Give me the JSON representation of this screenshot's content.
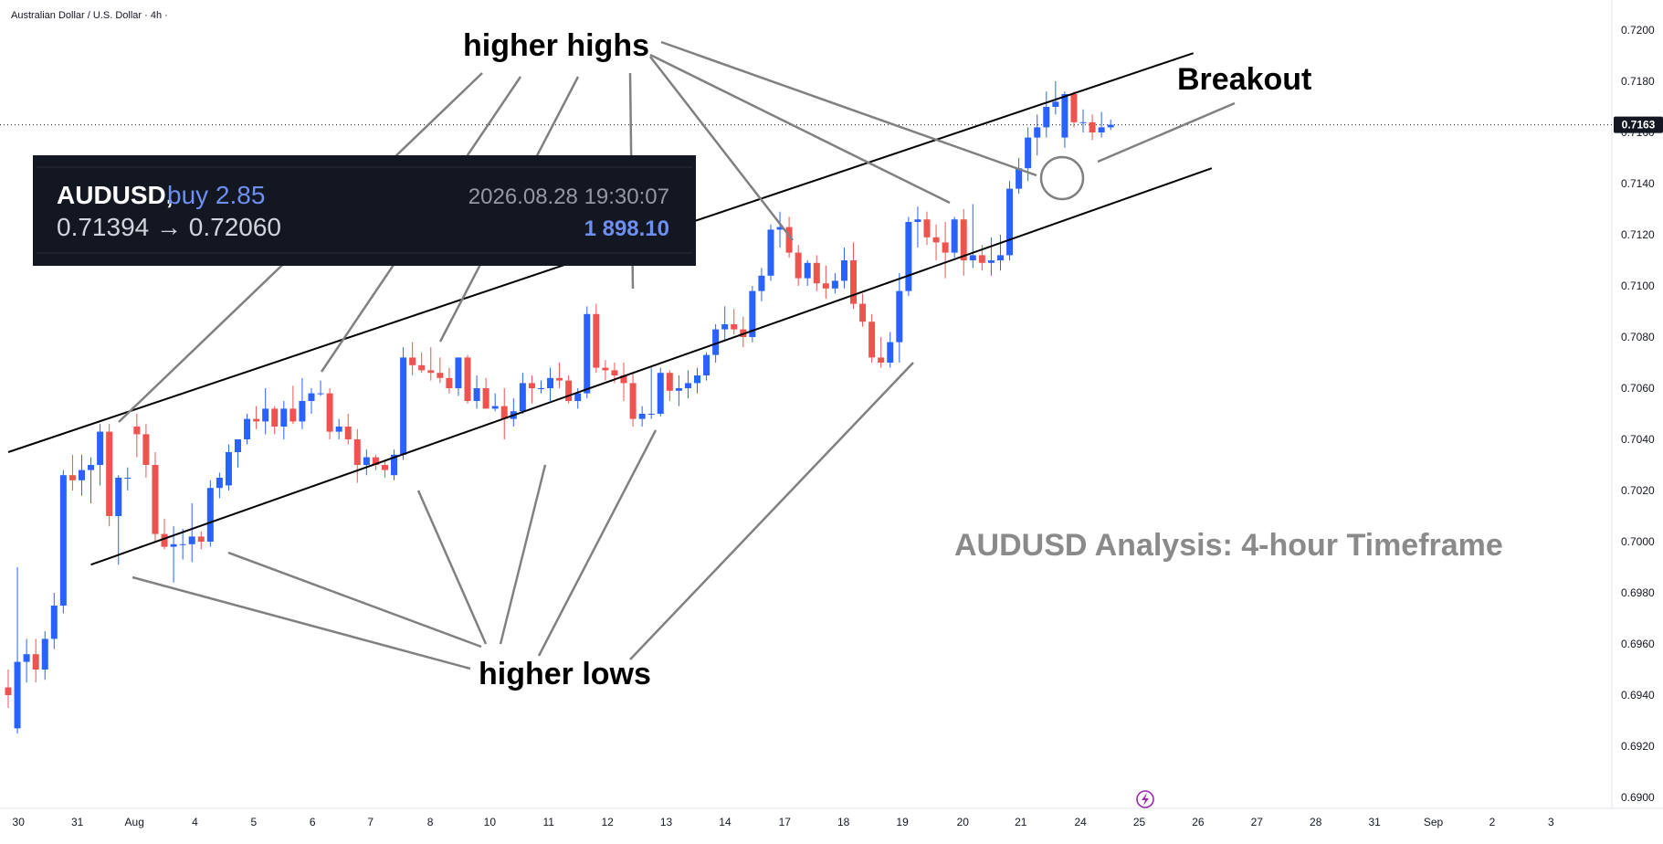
{
  "header": {
    "symbol_label": "Australian Dollar / U.S. Dollar · 4h ·"
  },
  "annotations": {
    "higher_highs": "higher highs",
    "higher_lows": "higher lows",
    "breakout": "Breakout",
    "title": "AUDUSD Analysis: 4-hour Timeframe"
  },
  "info_box": {
    "symbol": "AUDUSD,",
    "side": "buy 2.85",
    "prices": "0.71394 → 0.72060",
    "datetime": "2026.08.28 19:30:07",
    "value": "1 898.10"
  },
  "price_axis": {
    "ticks": [
      "0.7200",
      "0.7180",
      "0.7160",
      "0.7140",
      "0.7120",
      "0.7100",
      "0.7080",
      "0.7060",
      "0.7040",
      "0.7020",
      "0.7000",
      "0.6980",
      "0.6960",
      "0.6940",
      "0.6920",
      "0.6900"
    ],
    "last_price": "0.7163"
  },
  "time_axis": {
    "ticks": [
      "30",
      "31",
      "Aug",
      "4",
      "5",
      "6",
      "7",
      "8",
      "10",
      "11",
      "12",
      "13",
      "14",
      "17",
      "18",
      "19",
      "20",
      "21",
      "24",
      "25",
      "26",
      "27",
      "28",
      "31",
      "Sep",
      "2",
      "3"
    ]
  },
  "colors": {
    "up": "#2962ff",
    "down": "#ef5350",
    "line": "#000000",
    "annotation_line": "#808080"
  },
  "chart_data": {
    "type": "candlestick",
    "symbol": "AUDUSD",
    "timeframe": "4h",
    "ylim": [
      0.69,
      0.72
    ],
    "grid": false,
    "candles": [
      {
        "o": 0.6943,
        "h": 0.695,
        "l": 0.6935,
        "c": 0.694
      },
      {
        "o": 0.6927,
        "h": 0.699,
        "l": 0.6925,
        "c": 0.6953
      },
      {
        "o": 0.6953,
        "h": 0.6962,
        "l": 0.6945,
        "c": 0.6956
      },
      {
        "o": 0.6956,
        "h": 0.6962,
        "l": 0.6945,
        "c": 0.695
      },
      {
        "o": 0.695,
        "h": 0.6965,
        "l": 0.6946,
        "c": 0.6962
      },
      {
        "o": 0.6962,
        "h": 0.698,
        "l": 0.6958,
        "c": 0.6975
      },
      {
        "o": 0.6975,
        "h": 0.7028,
        "l": 0.6972,
        "c": 0.7026
      },
      {
        "o": 0.7026,
        "h": 0.7034,
        "l": 0.702,
        "c": 0.7024
      },
      {
        "o": 0.7024,
        "h": 0.7034,
        "l": 0.7018,
        "c": 0.7028
      },
      {
        "o": 0.7028,
        "h": 0.7033,
        "l": 0.7015,
        "c": 0.703
      },
      {
        "o": 0.703,
        "h": 0.7046,
        "l": 0.7022,
        "c": 0.7043
      },
      {
        "o": 0.7043,
        "h": 0.7046,
        "l": 0.7006,
        "c": 0.701
      },
      {
        "o": 0.701,
        "h": 0.7026,
        "l": 0.6991,
        "c": 0.7025
      },
      {
        "o": 0.7025,
        "h": 0.7029,
        "l": 0.702,
        "c": 0.7025
      },
      {
        "o": 0.7045,
        "h": 0.705,
        "l": 0.7033,
        "c": 0.7042
      },
      {
        "o": 0.7042,
        "h": 0.7046,
        "l": 0.7025,
        "c": 0.703
      },
      {
        "o": 0.703,
        "h": 0.7035,
        "l": 0.7,
        "c": 0.7003
      },
      {
        "o": 0.7003,
        "h": 0.7009,
        "l": 0.6997,
        "c": 0.6998
      },
      {
        "o": 0.6998,
        "h": 0.7006,
        "l": 0.6984,
        "c": 0.6999
      },
      {
        "o": 0.6999,
        "h": 0.7005,
        "l": 0.6993,
        "c": 0.6999
      },
      {
        "o": 0.6999,
        "h": 0.7015,
        "l": 0.6992,
        "c": 0.7002
      },
      {
        "o": 0.7002,
        "h": 0.7004,
        "l": 0.6997,
        "c": 0.7
      },
      {
        "o": 0.7,
        "h": 0.7024,
        "l": 0.6998,
        "c": 0.7021
      },
      {
        "o": 0.7021,
        "h": 0.7027,
        "l": 0.7017,
        "c": 0.7025
      },
      {
        "o": 0.7022,
        "h": 0.7038,
        "l": 0.702,
        "c": 0.7035
      },
      {
        "o": 0.7035,
        "h": 0.704,
        "l": 0.7029,
        "c": 0.704
      },
      {
        "o": 0.704,
        "h": 0.705,
        "l": 0.7038,
        "c": 0.7048
      },
      {
        "o": 0.7048,
        "h": 0.7053,
        "l": 0.7044,
        "c": 0.7047
      },
      {
        "o": 0.7047,
        "h": 0.706,
        "l": 0.7042,
        "c": 0.7052
      },
      {
        "o": 0.7052,
        "h": 0.7053,
        "l": 0.7042,
        "c": 0.7045
      },
      {
        "o": 0.7045,
        "h": 0.7055,
        "l": 0.704,
        "c": 0.7052
      },
      {
        "o": 0.7052,
        "h": 0.7061,
        "l": 0.7046,
        "c": 0.7047
      },
      {
        "o": 0.7047,
        "h": 0.7064,
        "l": 0.7044,
        "c": 0.7055
      },
      {
        "o": 0.7055,
        "h": 0.706,
        "l": 0.705,
        "c": 0.7058
      },
      {
        "o": 0.7058,
        "h": 0.7063,
        "l": 0.7057,
        "c": 0.7058
      },
      {
        "o": 0.7058,
        "h": 0.706,
        "l": 0.704,
        "c": 0.7043
      },
      {
        "o": 0.7043,
        "h": 0.7048,
        "l": 0.704,
        "c": 0.7045
      },
      {
        "o": 0.7045,
        "h": 0.705,
        "l": 0.7038,
        "c": 0.704
      },
      {
        "o": 0.704,
        "h": 0.7044,
        "l": 0.7023,
        "c": 0.703
      },
      {
        "o": 0.703,
        "h": 0.7036,
        "l": 0.7026,
        "c": 0.7033
      },
      {
        "o": 0.7033,
        "h": 0.7034,
        "l": 0.7028,
        "c": 0.703
      },
      {
        "o": 0.703,
        "h": 0.7032,
        "l": 0.7025,
        "c": 0.7028
      },
      {
        "o": 0.7026,
        "h": 0.7036,
        "l": 0.7024,
        "c": 0.7034
      },
      {
        "o": 0.7034,
        "h": 0.7076,
        "l": 0.7032,
        "c": 0.7072
      },
      {
        "o": 0.7072,
        "h": 0.7078,
        "l": 0.7065,
        "c": 0.7069
      },
      {
        "o": 0.7069,
        "h": 0.7074,
        "l": 0.7066,
        "c": 0.7067
      },
      {
        "o": 0.7067,
        "h": 0.7076,
        "l": 0.7063,
        "c": 0.7066
      },
      {
        "o": 0.7066,
        "h": 0.7072,
        "l": 0.7062,
        "c": 0.7064
      },
      {
        "o": 0.7064,
        "h": 0.7068,
        "l": 0.7058,
        "c": 0.706
      },
      {
        "o": 0.706,
        "h": 0.7072,
        "l": 0.7057,
        "c": 0.7072
      },
      {
        "o": 0.7072,
        "h": 0.7073,
        "l": 0.7054,
        "c": 0.7055
      },
      {
        "o": 0.7055,
        "h": 0.7065,
        "l": 0.7052,
        "c": 0.706
      },
      {
        "o": 0.706,
        "h": 0.7064,
        "l": 0.7052,
        "c": 0.7052
      },
      {
        "o": 0.7052,
        "h": 0.7058,
        "l": 0.7051,
        "c": 0.7053
      },
      {
        "o": 0.7053,
        "h": 0.706,
        "l": 0.704,
        "c": 0.7048
      },
      {
        "o": 0.7048,
        "h": 0.7056,
        "l": 0.7045,
        "c": 0.7051
      },
      {
        "o": 0.7051,
        "h": 0.7066,
        "l": 0.705,
        "c": 0.7062
      },
      {
        "o": 0.7062,
        "h": 0.7065,
        "l": 0.7054,
        "c": 0.706
      },
      {
        "o": 0.706,
        "h": 0.7063,
        "l": 0.7058,
        "c": 0.706
      },
      {
        "o": 0.706,
        "h": 0.7068,
        "l": 0.7055,
        "c": 0.7064
      },
      {
        "o": 0.7064,
        "h": 0.707,
        "l": 0.706,
        "c": 0.7063
      },
      {
        "o": 0.7063,
        "h": 0.7065,
        "l": 0.7054,
        "c": 0.7055
      },
      {
        "o": 0.7055,
        "h": 0.706,
        "l": 0.7052,
        "c": 0.7058
      },
      {
        "o": 0.7058,
        "h": 0.7092,
        "l": 0.7056,
        "c": 0.7089
      },
      {
        "o": 0.7089,
        "h": 0.7093,
        "l": 0.7066,
        "c": 0.7068
      },
      {
        "o": 0.7068,
        "h": 0.7071,
        "l": 0.7063,
        "c": 0.7067
      },
      {
        "o": 0.7067,
        "h": 0.707,
        "l": 0.7062,
        "c": 0.7065
      },
      {
        "o": 0.7065,
        "h": 0.707,
        "l": 0.7055,
        "c": 0.7062
      },
      {
        "o": 0.7062,
        "h": 0.7066,
        "l": 0.7045,
        "c": 0.7048
      },
      {
        "o": 0.7048,
        "h": 0.7053,
        "l": 0.7045,
        "c": 0.705
      },
      {
        "o": 0.705,
        "h": 0.7068,
        "l": 0.7048,
        "c": 0.705
      },
      {
        "o": 0.705,
        "h": 0.7068,
        "l": 0.7049,
        "c": 0.7066
      },
      {
        "o": 0.7066,
        "h": 0.7067,
        "l": 0.7055,
        "c": 0.7059
      },
      {
        "o": 0.7059,
        "h": 0.7065,
        "l": 0.7053,
        "c": 0.706
      },
      {
        "o": 0.706,
        "h": 0.7067,
        "l": 0.7056,
        "c": 0.7062
      },
      {
        "o": 0.7062,
        "h": 0.7068,
        "l": 0.7058,
        "c": 0.7065
      },
      {
        "o": 0.7065,
        "h": 0.7074,
        "l": 0.7063,
        "c": 0.7073
      },
      {
        "o": 0.7073,
        "h": 0.7085,
        "l": 0.707,
        "c": 0.7083
      },
      {
        "o": 0.7083,
        "h": 0.7092,
        "l": 0.7079,
        "c": 0.7085
      },
      {
        "o": 0.7085,
        "h": 0.7091,
        "l": 0.7081,
        "c": 0.7083
      },
      {
        "o": 0.7083,
        "h": 0.7088,
        "l": 0.7076,
        "c": 0.708
      },
      {
        "o": 0.708,
        "h": 0.71,
        "l": 0.7078,
        "c": 0.7098
      },
      {
        "o": 0.7098,
        "h": 0.7107,
        "l": 0.7094,
        "c": 0.7104
      },
      {
        "o": 0.7104,
        "h": 0.7124,
        "l": 0.7102,
        "c": 0.7122
      },
      {
        "o": 0.7122,
        "h": 0.7129,
        "l": 0.7115,
        "c": 0.7123
      },
      {
        "o": 0.7123,
        "h": 0.7127,
        "l": 0.7111,
        "c": 0.7113
      },
      {
        "o": 0.7113,
        "h": 0.7116,
        "l": 0.71,
        "c": 0.7103
      },
      {
        "o": 0.7103,
        "h": 0.711,
        "l": 0.71,
        "c": 0.7109
      },
      {
        "o": 0.7109,
        "h": 0.7112,
        "l": 0.7098,
        "c": 0.7101
      },
      {
        "o": 0.7101,
        "h": 0.7108,
        "l": 0.7095,
        "c": 0.7099
      },
      {
        "o": 0.7099,
        "h": 0.7105,
        "l": 0.7097,
        "c": 0.7102
      },
      {
        "o": 0.7102,
        "h": 0.7115,
        "l": 0.7099,
        "c": 0.711
      },
      {
        "o": 0.711,
        "h": 0.7117,
        "l": 0.7091,
        "c": 0.7093
      },
      {
        "o": 0.7093,
        "h": 0.7097,
        "l": 0.7084,
        "c": 0.7086
      },
      {
        "o": 0.7086,
        "h": 0.7089,
        "l": 0.707,
        "c": 0.7072
      },
      {
        "o": 0.7072,
        "h": 0.708,
        "l": 0.7068,
        "c": 0.707
      },
      {
        "o": 0.707,
        "h": 0.7082,
        "l": 0.7068,
        "c": 0.7078
      },
      {
        "o": 0.7078,
        "h": 0.7105,
        "l": 0.707,
        "c": 0.7098
      },
      {
        "o": 0.7098,
        "h": 0.7127,
        "l": 0.7096,
        "c": 0.7125
      },
      {
        "o": 0.7125,
        "h": 0.7131,
        "l": 0.7115,
        "c": 0.7126
      },
      {
        "o": 0.7126,
        "h": 0.7129,
        "l": 0.7116,
        "c": 0.7119
      },
      {
        "o": 0.7119,
        "h": 0.7124,
        "l": 0.711,
        "c": 0.7117
      },
      {
        "o": 0.7117,
        "h": 0.7125,
        "l": 0.7103,
        "c": 0.7113
      },
      {
        "o": 0.7113,
        "h": 0.7127,
        "l": 0.7111,
        "c": 0.7126
      },
      {
        "o": 0.7126,
        "h": 0.713,
        "l": 0.7104,
        "c": 0.711
      },
      {
        "o": 0.711,
        "h": 0.7132,
        "l": 0.7107,
        "c": 0.7112
      },
      {
        "o": 0.7112,
        "h": 0.7116,
        "l": 0.7106,
        "c": 0.7109
      },
      {
        "o": 0.7109,
        "h": 0.7119,
        "l": 0.7104,
        "c": 0.711
      },
      {
        "o": 0.711,
        "h": 0.712,
        "l": 0.7106,
        "c": 0.7112
      },
      {
        "o": 0.7112,
        "h": 0.7141,
        "l": 0.711,
        "c": 0.7138
      },
      {
        "o": 0.7138,
        "h": 0.715,
        "l": 0.7136,
        "c": 0.7146
      },
      {
        "o": 0.7146,
        "h": 0.7162,
        "l": 0.7141,
        "c": 0.7158
      },
      {
        "o": 0.7158,
        "h": 0.7167,
        "l": 0.7151,
        "c": 0.7162
      },
      {
        "o": 0.7162,
        "h": 0.7176,
        "l": 0.7158,
        "c": 0.717
      },
      {
        "o": 0.717,
        "h": 0.718,
        "l": 0.7167,
        "c": 0.7172
      },
      {
        "o": 0.7158,
        "h": 0.7176,
        "l": 0.7154,
        "c": 0.7175
      },
      {
        "o": 0.7175,
        "h": 0.7176,
        "l": 0.7162,
        "c": 0.7164
      },
      {
        "o": 0.7164,
        "h": 0.7169,
        "l": 0.716,
        "c": 0.7164
      },
      {
        "o": 0.7164,
        "h": 0.7167,
        "l": 0.7157,
        "c": 0.716
      },
      {
        "o": 0.716,
        "h": 0.7168,
        "l": 0.7158,
        "c": 0.7162
      },
      {
        "o": 0.7162,
        "h": 0.7165,
        "l": 0.7161,
        "c": 0.7163
      }
    ],
    "channel": {
      "upper": [
        {
          "bar": 0,
          "price": 0.7035
        },
        {
          "bar": 129,
          "price": 0.7191
        }
      ],
      "lower": [
        {
          "bar": 9,
          "price": 0.6991
        },
        {
          "bar": 131,
          "price": 0.7146
        }
      ]
    }
  }
}
